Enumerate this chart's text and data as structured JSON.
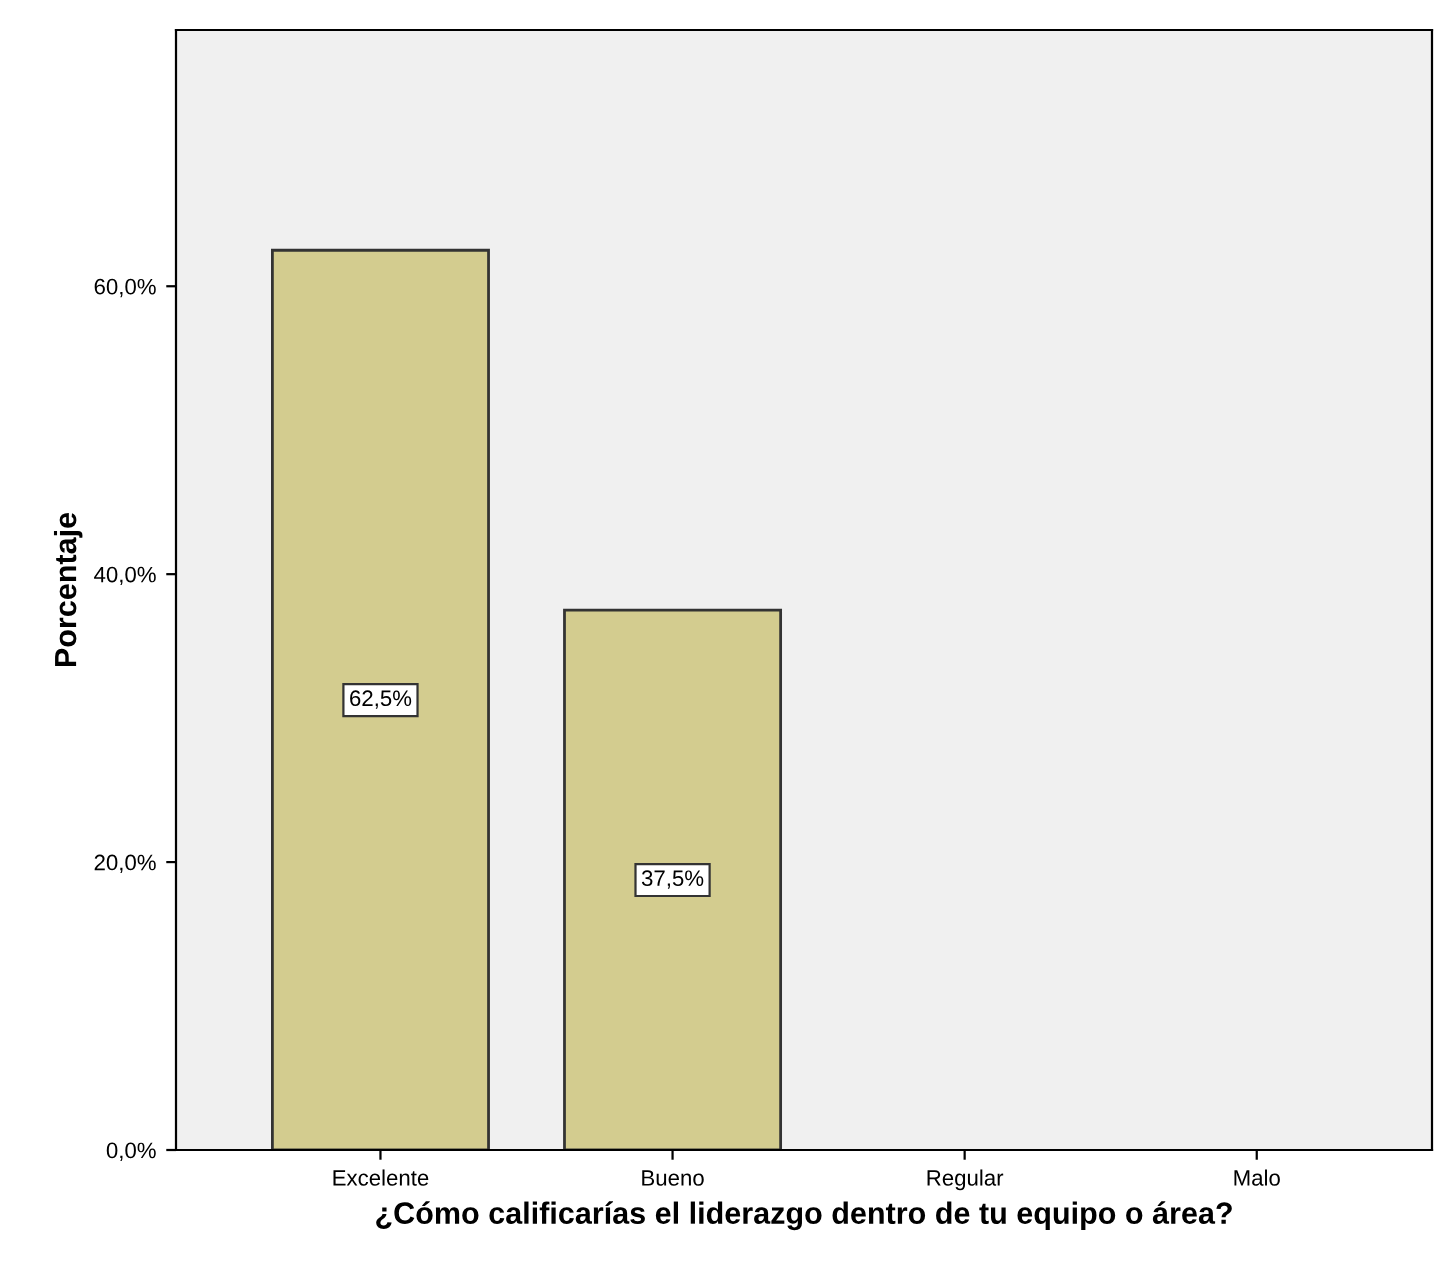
{
  "chart_data": {
    "type": "bar",
    "xlabel": "¿Cómo calificarías el liderazgo dentro de tu equipo o área?",
    "ylabel": "Porcentaje",
    "categories": [
      "Excelente",
      "Bueno",
      "Regular",
      "Malo"
    ],
    "values": [
      62.5,
      37.5,
      0,
      0
    ],
    "color": "#d3cc8f",
    "value_labels": [
      "62,5%",
      "37,5%",
      null,
      null
    ],
    "ylim": [
      0,
      77.8
    ],
    "yticks": [
      {
        "value": 0,
        "label": "0,0%"
      },
      {
        "value": 20,
        "label": "20,0%"
      },
      {
        "value": 40,
        "label": "40,0%"
      },
      {
        "value": 60,
        "label": "60,0%"
      }
    ],
    "grid": false,
    "legend": false
  }
}
